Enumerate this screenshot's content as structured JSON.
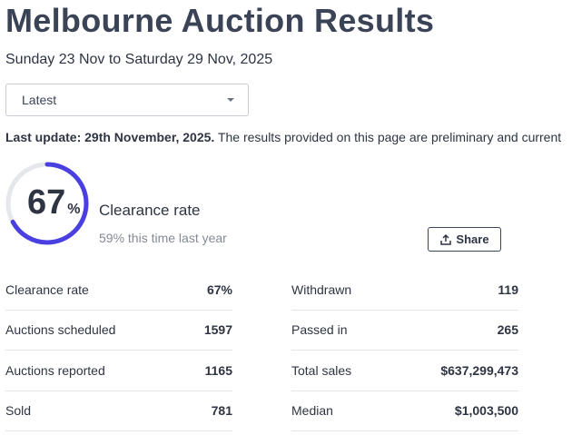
{
  "title": "Melbourne Auction Results",
  "date_range": "Sunday 23 Nov to Saturday 29 Nov, 2025",
  "period_select": {
    "value": "Latest"
  },
  "update": {
    "bold": "Last update: 29th November, 2025.",
    "text": " The results provided on this page are preliminary and current"
  },
  "clearance": {
    "value": "67",
    "unit": "%",
    "fraction": 0.67,
    "label": "Clearance rate",
    "last_year": "59% this time last year",
    "colors": {
      "ring": "#4a3fe0",
      "track": "#e5e7eb"
    }
  },
  "share_label": "Share",
  "stats_left": [
    {
      "label": "Clearance rate",
      "value": "67%"
    },
    {
      "label": "Auctions scheduled",
      "value": "1597"
    },
    {
      "label": "Auctions reported",
      "value": "1165"
    },
    {
      "label": "Sold",
      "value": "781"
    }
  ],
  "stats_right": [
    {
      "label": "Withdrawn",
      "value": "119"
    },
    {
      "label": "Passed in",
      "value": "265"
    },
    {
      "label": "Total sales",
      "value": "$637,299,473"
    },
    {
      "label": "Median",
      "value": "$1,003,500"
    }
  ]
}
